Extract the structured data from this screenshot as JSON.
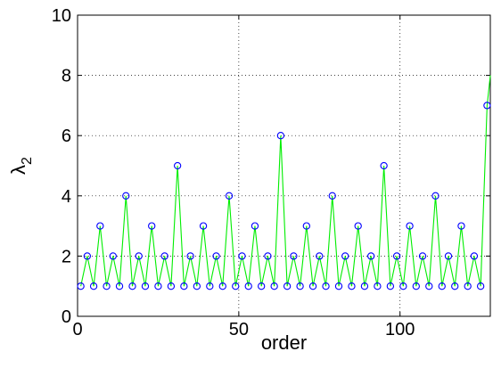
{
  "chart_data": {
    "type": "line",
    "xlabel": "order",
    "ylabel": {
      "main": "λ",
      "sub": "2"
    },
    "xlim": [
      0,
      128
    ],
    "ylim": [
      0,
      10
    ],
    "xticks": [
      0,
      50,
      100
    ],
    "yticks": [
      0,
      2,
      4,
      6,
      8,
      10
    ],
    "grid": true,
    "series": [
      {
        "style": "line",
        "color": "#00ee00",
        "x": [
          1,
          3,
          5,
          7,
          9,
          11,
          13,
          15,
          17,
          19,
          21,
          23,
          25,
          27,
          29,
          31,
          33,
          35,
          37,
          39,
          41,
          43,
          45,
          47,
          49,
          51,
          53,
          55,
          57,
          59,
          61,
          63,
          65,
          67,
          69,
          71,
          73,
          75,
          77,
          79,
          81,
          83,
          85,
          87,
          89,
          91,
          93,
          95,
          97,
          99,
          101,
          103,
          105,
          107,
          109,
          111,
          113,
          115,
          117,
          119,
          121,
          123,
          125,
          127,
          128
        ],
        "y": [
          1,
          2,
          1,
          3,
          1,
          2,
          1,
          4,
          1,
          2,
          1,
          3,
          1,
          2,
          1,
          5,
          1,
          2,
          1,
          3,
          1,
          2,
          1,
          4,
          1,
          2,
          1,
          3,
          1,
          2,
          1,
          6,
          1,
          2,
          1,
          3,
          1,
          2,
          1,
          4,
          1,
          2,
          1,
          3,
          1,
          2,
          1,
          5,
          1,
          2,
          1,
          3,
          1,
          2,
          1,
          4,
          1,
          2,
          1,
          3,
          1,
          2,
          1,
          7,
          8
        ]
      },
      {
        "style": "markers",
        "marker": "circle",
        "color": "#0000ff",
        "x": [
          1,
          3,
          5,
          7,
          9,
          11,
          13,
          15,
          17,
          19,
          21,
          23,
          25,
          27,
          29,
          31,
          33,
          35,
          37,
          39,
          41,
          43,
          45,
          47,
          49,
          51,
          53,
          55,
          57,
          59,
          61,
          63,
          65,
          67,
          69,
          71,
          73,
          75,
          77,
          79,
          81,
          83,
          85,
          87,
          89,
          91,
          93,
          95,
          97,
          99,
          101,
          103,
          105,
          107,
          109,
          111,
          113,
          115,
          117,
          119,
          121,
          123,
          125,
          127
        ],
        "y": [
          1,
          2,
          1,
          3,
          1,
          2,
          1,
          4,
          1,
          2,
          1,
          3,
          1,
          2,
          1,
          5,
          1,
          2,
          1,
          3,
          1,
          2,
          1,
          4,
          1,
          2,
          1,
          3,
          1,
          2,
          1,
          6,
          1,
          2,
          1,
          3,
          1,
          2,
          1,
          4,
          1,
          2,
          1,
          3,
          1,
          2,
          1,
          5,
          1,
          2,
          1,
          3,
          1,
          2,
          1,
          4,
          1,
          2,
          1,
          3,
          1,
          2,
          1,
          7
        ]
      }
    ]
  }
}
